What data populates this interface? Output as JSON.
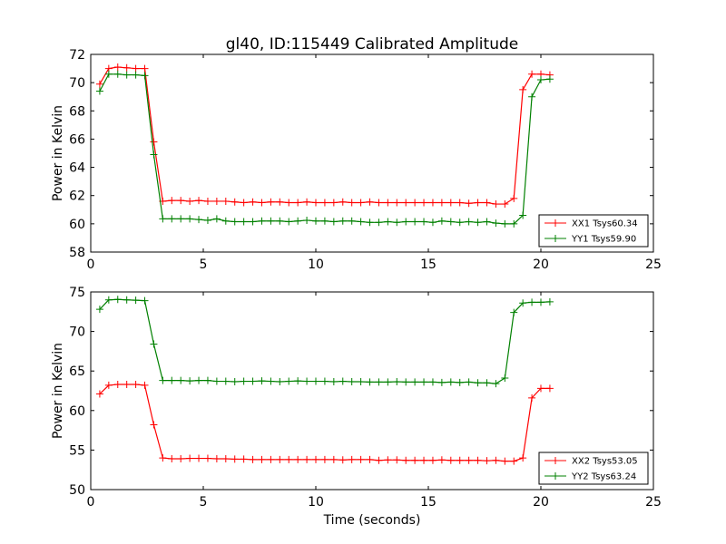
{
  "chart_data": [
    {
      "type": "line",
      "title": "gl40, ID:115449 Calibrated Amplitude",
      "xlabel": "",
      "ylabel": "Power in Kelvin",
      "xlim": [
        0,
        25
      ],
      "ylim": [
        58,
        72
      ],
      "xticks": [
        0,
        5,
        10,
        15,
        20,
        25
      ],
      "yticks": [
        58,
        60,
        62,
        64,
        66,
        68,
        70,
        72
      ],
      "grid": false,
      "legend_position": "lower-right",
      "x": [
        0.4,
        0.8,
        1.2,
        1.6,
        2.0,
        2.4,
        2.8,
        3.2,
        3.6,
        4.0,
        4.4,
        4.8,
        5.2,
        5.6,
        6.0,
        6.4,
        6.8,
        7.2,
        7.6,
        8.0,
        8.4,
        8.8,
        9.2,
        9.6,
        10.0,
        10.4,
        10.8,
        11.2,
        11.6,
        12.0,
        12.4,
        12.8,
        13.2,
        13.6,
        14.0,
        14.4,
        14.8,
        15.2,
        15.6,
        16.0,
        16.4,
        16.8,
        17.2,
        17.6,
        18.0,
        18.4,
        18.8,
        19.2,
        19.6,
        20.0,
        20.4
      ],
      "series": [
        {
          "name": "XX1 Tsys60.34",
          "color": "#ff0000",
          "values": [
            69.9,
            71.0,
            71.1,
            71.05,
            71.0,
            71.0,
            65.8,
            61.6,
            61.65,
            61.65,
            61.6,
            61.65,
            61.6,
            61.6,
            61.6,
            61.55,
            61.5,
            61.55,
            61.5,
            61.55,
            61.55,
            61.5,
            61.5,
            61.55,
            61.5,
            61.5,
            61.5,
            61.55,
            61.5,
            61.5,
            61.55,
            61.5,
            61.5,
            61.5,
            61.5,
            61.5,
            61.5,
            61.5,
            61.5,
            61.5,
            61.5,
            61.45,
            61.5,
            61.5,
            61.4,
            61.4,
            61.8,
            69.5,
            70.6,
            70.6,
            70.55
          ]
        },
        {
          "name": "YY1 Tsys59.90",
          "color": "#008000",
          "values": [
            69.4,
            70.6,
            70.6,
            70.55,
            70.55,
            70.5,
            64.9,
            60.35,
            60.35,
            60.35,
            60.35,
            60.3,
            60.25,
            60.35,
            60.2,
            60.15,
            60.15,
            60.15,
            60.2,
            60.2,
            60.2,
            60.15,
            60.2,
            60.25,
            60.2,
            60.2,
            60.15,
            60.2,
            60.2,
            60.15,
            60.1,
            60.1,
            60.15,
            60.1,
            60.15,
            60.15,
            60.15,
            60.1,
            60.2,
            60.15,
            60.1,
            60.15,
            60.1,
            60.15,
            60.05,
            60.0,
            60.0,
            60.6,
            69.0,
            70.2,
            70.25
          ]
        }
      ]
    },
    {
      "type": "line",
      "title": "",
      "xlabel": "Time (seconds)",
      "ylabel": "Power in Kelvin",
      "xlim": [
        0,
        25
      ],
      "ylim": [
        50,
        75
      ],
      "xticks": [
        0,
        5,
        10,
        15,
        20,
        25
      ],
      "yticks": [
        50,
        55,
        60,
        65,
        70,
        75
      ],
      "grid": false,
      "legend_position": "lower-right",
      "x": [
        0.4,
        0.8,
        1.2,
        1.6,
        2.0,
        2.4,
        2.8,
        3.2,
        3.6,
        4.0,
        4.4,
        4.8,
        5.2,
        5.6,
        6.0,
        6.4,
        6.8,
        7.2,
        7.6,
        8.0,
        8.4,
        8.8,
        9.2,
        9.6,
        10.0,
        10.4,
        10.8,
        11.2,
        11.6,
        12.0,
        12.4,
        12.8,
        13.2,
        13.6,
        14.0,
        14.4,
        14.8,
        15.2,
        15.6,
        16.0,
        16.4,
        16.8,
        17.2,
        17.6,
        18.0,
        18.4,
        18.8,
        19.2,
        19.6,
        20.0,
        20.4
      ],
      "series": [
        {
          "name": "XX2 Tsys53.05",
          "color": "#ff0000",
          "values": [
            62.1,
            63.2,
            63.3,
            63.3,
            63.3,
            63.2,
            58.2,
            54.0,
            53.9,
            53.9,
            53.95,
            53.95,
            53.95,
            53.9,
            53.9,
            53.85,
            53.85,
            53.8,
            53.8,
            53.8,
            53.8,
            53.8,
            53.8,
            53.8,
            53.8,
            53.8,
            53.8,
            53.75,
            53.8,
            53.8,
            53.8,
            53.7,
            53.75,
            53.75,
            53.7,
            53.7,
            53.7,
            53.7,
            53.75,
            53.7,
            53.7,
            53.7,
            53.7,
            53.65,
            53.7,
            53.6,
            53.6,
            54.0,
            61.6,
            62.8,
            62.8
          ]
        },
        {
          "name": "YY2 Tsys63.24",
          "color": "#008000",
          "values": [
            72.8,
            74.0,
            74.05,
            74.0,
            73.95,
            73.9,
            68.4,
            63.8,
            63.8,
            63.8,
            63.75,
            63.8,
            63.8,
            63.7,
            63.7,
            63.65,
            63.7,
            63.7,
            63.75,
            63.7,
            63.65,
            63.7,
            63.75,
            63.7,
            63.7,
            63.7,
            63.65,
            63.7,
            63.65,
            63.65,
            63.6,
            63.6,
            63.6,
            63.65,
            63.6,
            63.6,
            63.6,
            63.6,
            63.55,
            63.6,
            63.55,
            63.6,
            63.5,
            63.5,
            63.4,
            64.1,
            72.4,
            73.6,
            73.7,
            73.7,
            73.75
          ]
        }
      ]
    }
  ]
}
